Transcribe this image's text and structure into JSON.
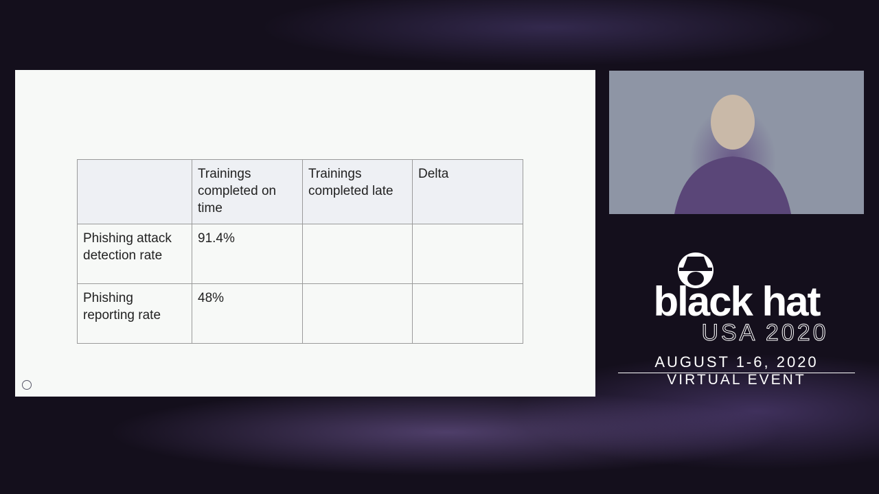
{
  "slide": {
    "table": {
      "header": [
        "Trainings completed on time",
        "Trainings completed late",
        "Delta"
      ],
      "rows": [
        {
          "label": "Phishing attack detection rate",
          "on_time": "91.4%"
        },
        {
          "label": "Phishing reporting rate",
          "on_time": "48%"
        }
      ]
    }
  },
  "branding": {
    "logo": "black hat",
    "event": "USA 2020",
    "dates": "AUGUST 1-6, 2020",
    "format": "VIRTUAL EVENT"
  }
}
